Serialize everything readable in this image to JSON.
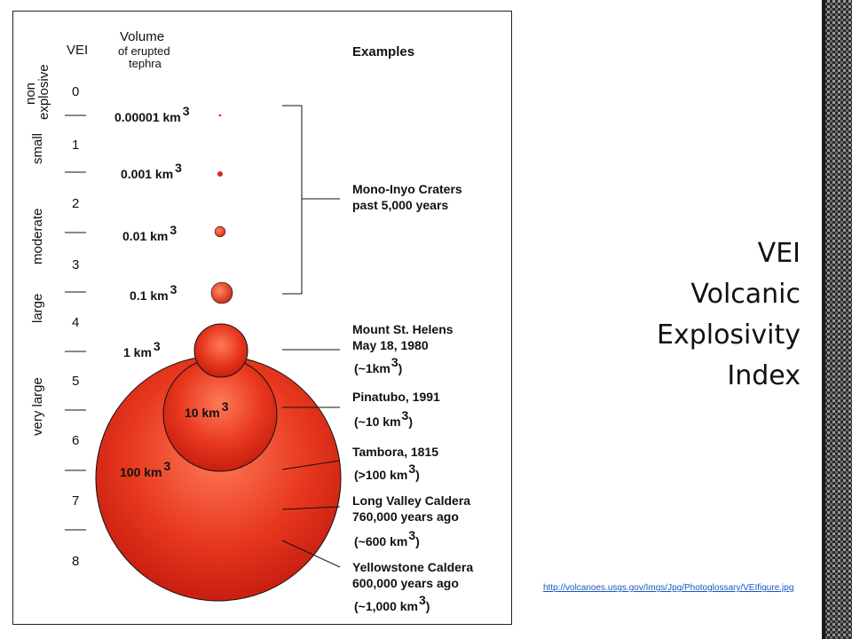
{
  "figure": {
    "vei_header": "VEI",
    "volume_header": "Volume",
    "volume_subheader_1": "of erupted",
    "volume_subheader_2": "tephra",
    "examples_header": "Examples",
    "categories": [
      {
        "label_1": "non",
        "label_2": "explosive"
      },
      {
        "label_1": "small"
      },
      {
        "label_1": "moderate"
      },
      {
        "label_1": "large"
      },
      {
        "label_1": "very large"
      }
    ],
    "vei_levels": [
      "0",
      "1",
      "2",
      "3",
      "4",
      "5",
      "6",
      "7",
      "8"
    ],
    "volumes": [
      {
        "value": "0.00001 km",
        "exp": "3"
      },
      {
        "value": "0.001 km",
        "exp": "3"
      },
      {
        "value": "0.01 km",
        "exp": "3"
      },
      {
        "value": "0.1 km",
        "exp": "3"
      },
      {
        "value": "1 km",
        "exp": "3"
      },
      {
        "value": "10 km",
        "exp": "3"
      },
      {
        "value": "100 km",
        "exp": "3"
      }
    ],
    "examples": [
      {
        "line1": "Mono-Inyo Craters",
        "line2": "past 5,000 years",
        "line3": ""
      },
      {
        "line1": "Mount St. Helens",
        "line2": "May 18, 1980",
        "line3": "(~1km",
        "line3_exp": "3",
        "line3_end": ")"
      },
      {
        "line1": "Pinatubo, 1991",
        "line2": "",
        "line3": "(~10 km",
        "line3_exp": "3",
        "line3_end": ")"
      },
      {
        "line1": "Tambora, 1815",
        "line2": "",
        "line3": "(>100 km",
        "line3_exp": "3",
        "line3_end": ")"
      },
      {
        "line1": "Long Valley Caldera",
        "line2": "760,000 years ago",
        "line3": "(~600 km",
        "line3_exp": "3",
        "line3_end": ")"
      },
      {
        "line1": "Yellowstone Caldera",
        "line2": "600,000 years ago",
        "line3": "(~1,000 km",
        "line3_exp": "3",
        "line3_end": ")"
      }
    ],
    "colors": {
      "sphere_fill": "#e4301c",
      "sphere_light": "#ff6a4a",
      "line": "#111111"
    }
  },
  "title": {
    "line1": "VEI",
    "line2": "Volcanic",
    "line3": "Explosivity",
    "line4": "Index"
  },
  "source_url": "http://volcanoes.usgs.gov/Imgs/Jpg/Photoglossary/VEIfigure.jpg"
}
